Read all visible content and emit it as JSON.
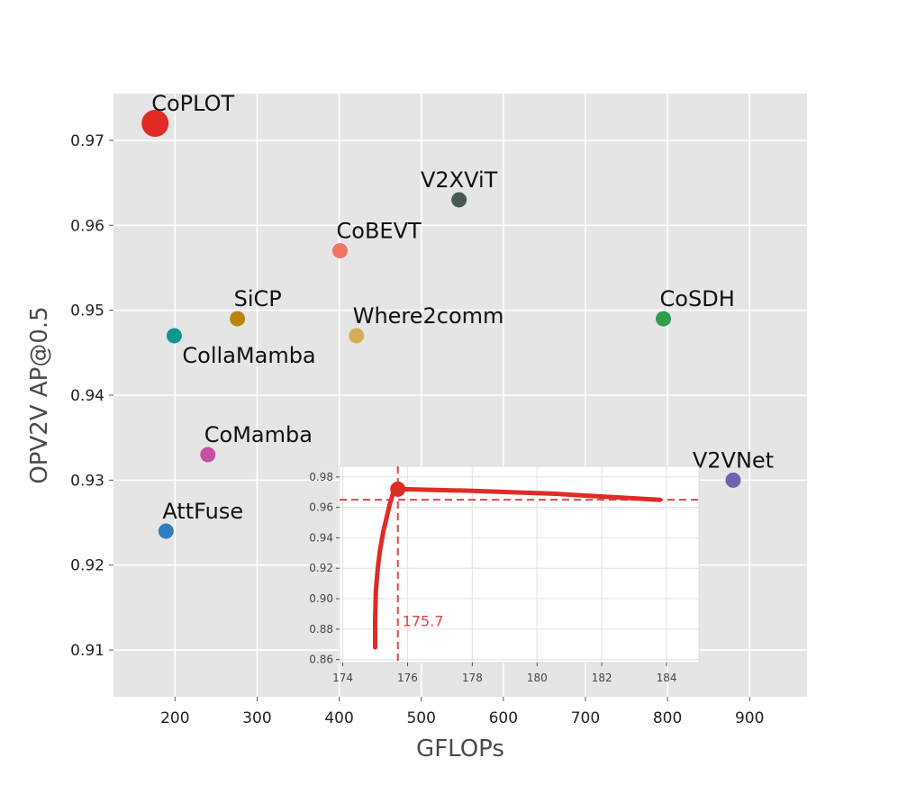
{
  "chart_data": {
    "type": "scatter",
    "title": "",
    "xlabel": "GFLOPs",
    "ylabel": "OPV2V  AP@0.5",
    "xlim": [
      125,
      970
    ],
    "ylim": [
      0.9045,
      0.9755
    ],
    "xticks": [
      200,
      300,
      400,
      500,
      600,
      700,
      800,
      900
    ],
    "yticks": [
      0.91,
      0.92,
      0.93,
      0.94,
      0.95,
      0.96,
      0.97
    ],
    "xtick_labels": [
      "200",
      "300",
      "400",
      "500",
      "600",
      "700",
      "800",
      "900"
    ],
    "ytick_labels": [
      "0.91",
      "0.92",
      "0.93",
      "0.94",
      "0.95",
      "0.96",
      "0.97"
    ],
    "grid": true,
    "points": [
      {
        "name": "CoPLOT",
        "x": 175.7,
        "y": 0.972,
        "color": "#e02b26",
        "highlight": true,
        "label_pos": "above-right"
      },
      {
        "name": "V2XViT",
        "x": 546,
        "y": 0.963,
        "color": "#4a5757",
        "label_pos": "above"
      },
      {
        "name": "CoBEVT",
        "x": 401,
        "y": 0.957,
        "color": "#f07565",
        "label_pos": "above-right"
      },
      {
        "name": "SiCP",
        "x": 276,
        "y": 0.949,
        "color": "#b8860b",
        "label_pos": "above-right"
      },
      {
        "name": "Where2comm",
        "x": 421,
        "y": 0.947,
        "color": "#d6ad56",
        "label_pos": "above-right"
      },
      {
        "name": "CollaMamba",
        "x": 199,
        "y": 0.947,
        "color": "#0f9690",
        "label_pos": "below-right"
      },
      {
        "name": "CoSDH",
        "x": 795,
        "y": 0.949,
        "color": "#2e9d4e",
        "label_pos": "above-right"
      },
      {
        "name": "CoMamba",
        "x": 240,
        "y": 0.933,
        "color": "#c651a3",
        "label_pos": "above-right"
      },
      {
        "name": "V2VNet",
        "x": 880,
        "y": 0.93,
        "color": "#7261ac",
        "label_pos": "above"
      },
      {
        "name": "AttFuse",
        "x": 189,
        "y": 0.924,
        "color": "#2f7fc0",
        "label_pos": "above-right"
      }
    ],
    "inset": {
      "type": "line",
      "xlim": [
        173.9,
        185.0
      ],
      "ylim": [
        0.858,
        0.987
      ],
      "xticks": [
        174,
        176,
        178,
        180,
        182,
        184
      ],
      "yticks": [
        0.86,
        0.88,
        0.9,
        0.92,
        0.94,
        0.96,
        0.98
      ],
      "xtick_labels": [
        "174",
        "176",
        "178",
        "180",
        "182",
        "184"
      ],
      "ytick_labels": [
        "0.86",
        "0.88",
        "0.90",
        "0.92",
        "0.94",
        "0.96",
        "0.98"
      ],
      "line_color": "#e02b26",
      "curve": {
        "x": [
          175.0,
          175.0,
          175.02,
          175.08,
          175.15,
          175.25,
          175.35,
          175.45,
          175.55,
          175.7,
          177.8,
          180.5,
          183.8
        ],
        "y": [
          0.868,
          0.885,
          0.905,
          0.92,
          0.932,
          0.944,
          0.953,
          0.962,
          0.969,
          0.972,
          0.971,
          0.969,
          0.965
        ]
      },
      "marker": {
        "x": 175.7,
        "y": 0.972
      },
      "ref_x": 175.7,
      "ref_y": 0.965,
      "annotation": "175.7",
      "ref_color": "#e04646"
    }
  }
}
